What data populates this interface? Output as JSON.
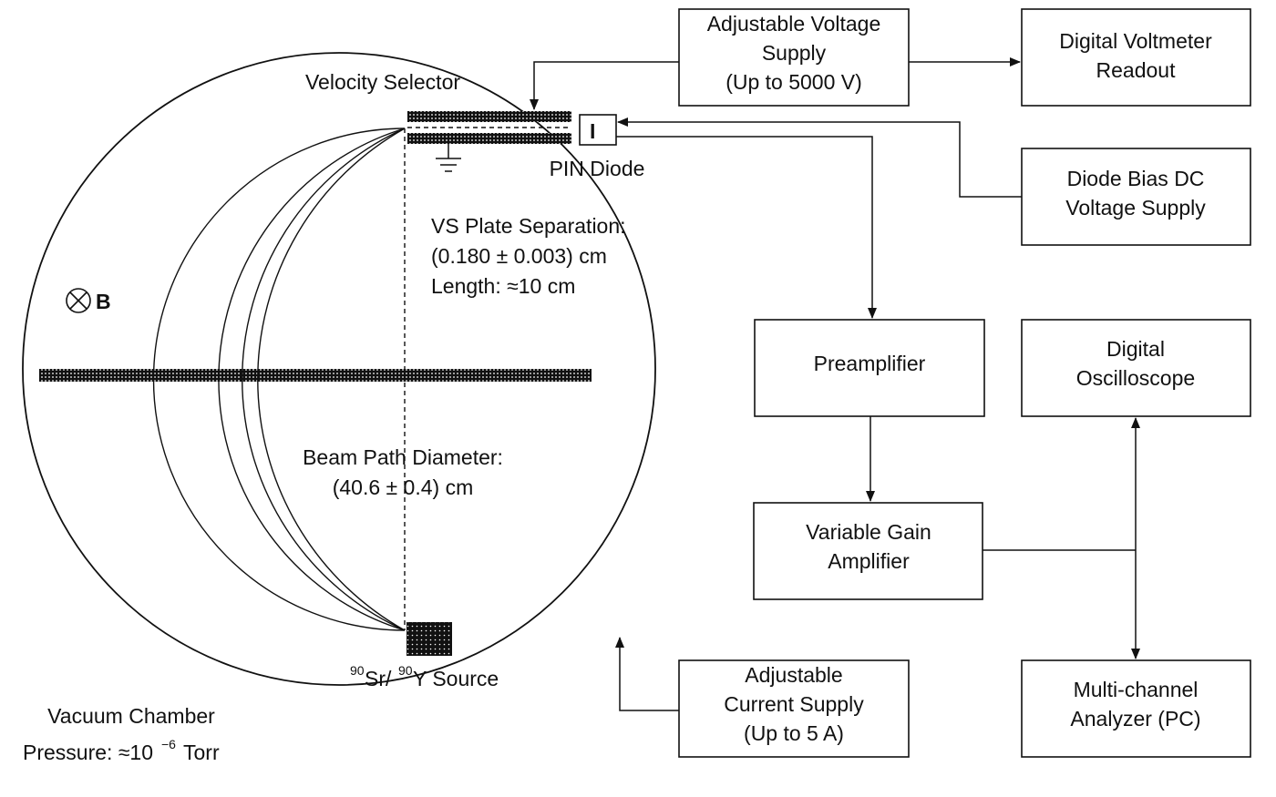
{
  "chamber": {
    "velocity_selector": "Velocity Selector",
    "pin_diode": "PIN Diode",
    "diode_symbol": "I",
    "vs_sep_title": "VS Plate Separation:",
    "vs_sep_value": "(0.180 ± 0.003) cm",
    "vs_length": "Length: ≈10 cm",
    "b_field_label": "B",
    "beam_diam_title": "Beam Path Diameter:",
    "beam_diam_value": "(40.6 ± 0.4) cm",
    "source_sup1": "90",
    "source_sr": "Sr/",
    "source_sup2": "90",
    "source_y": "Y Source",
    "vacuum_title": "Vacuum Chamber",
    "pressure_prefix": "Pressure: ≈10",
    "pressure_exp": "−6",
    "pressure_unit": " Torr"
  },
  "boxes": {
    "voltage_supply": [
      "Adjustable Voltage",
      "Supply",
      "(Up to 5000 V)"
    ],
    "voltmeter": [
      "Digital Voltmeter",
      "Readout"
    ],
    "diode_bias": [
      "Diode Bias DC",
      "Voltage Supply"
    ],
    "preamplifier": [
      "Preamplifier"
    ],
    "oscilloscope": [
      "Digital",
      "Oscilloscope"
    ],
    "vga": [
      "Variable Gain",
      "Amplifier"
    ],
    "current_supply": [
      "Adjustable",
      "Current Supply",
      "(Up to 5 A)"
    ],
    "mca": [
      "Multi-channel",
      "Analyzer (PC)"
    ]
  }
}
